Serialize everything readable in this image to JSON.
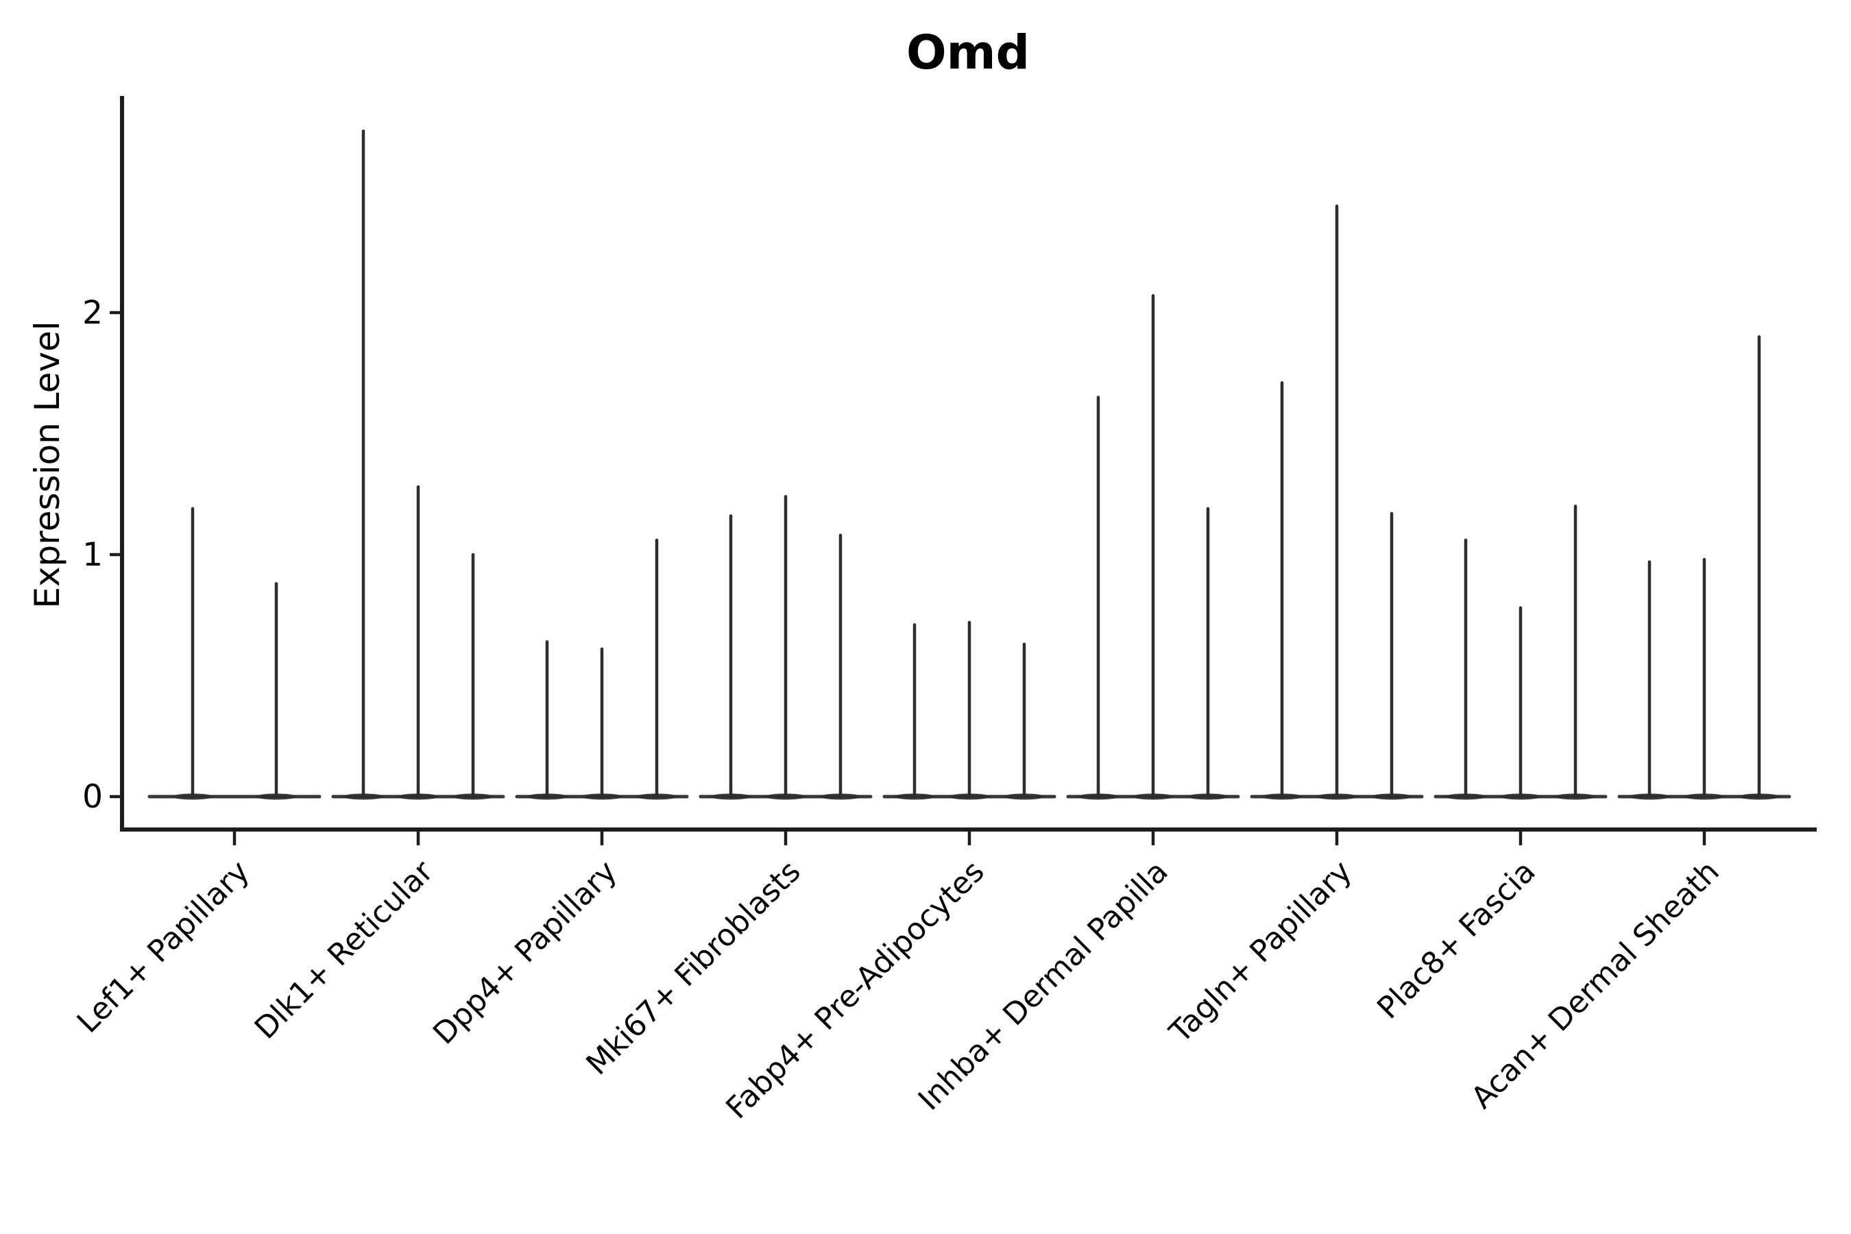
{
  "chart_data": {
    "type": "violin",
    "render_hint": "thin-stick-violins, black on white, matplotlib-style",
    "title": "Omd",
    "ylabel": "Expression Level",
    "xlabel": "",
    "yticks": [
      0,
      1,
      2
    ],
    "ylim": [
      -0.14,
      2.9
    ],
    "grid": false,
    "legend": null,
    "xticklabel_rotation": 45,
    "categories": [
      "Lef1+ Papillary",
      "Dlk1+ Reticular",
      "Dpp4+ Papillary",
      "Mki67+ Fibroblasts",
      "Fabp4+ Pre-Adipocytes",
      "Inhba+ Dermal Papilla",
      "Tagln+ Papillary",
      "Plac8+ Fascia",
      "Acan+ Dermal Sheath"
    ],
    "series": [
      {
        "category": "Lef1+ Papillary",
        "violin_maxima": [
          1.19,
          0.88
        ]
      },
      {
        "category": "Dlk1+ Reticular",
        "violin_maxima": [
          2.75,
          1.28,
          1.0
        ]
      },
      {
        "category": "Dpp4+ Papillary",
        "violin_maxima": [
          0.64,
          0.61,
          1.06
        ]
      },
      {
        "category": "Mki67+ Fibroblasts",
        "violin_maxima": [
          1.16,
          1.24,
          1.08
        ]
      },
      {
        "category": "Fabp4+ Pre-Adipocytes",
        "violin_maxima": [
          0.71,
          0.72,
          0.63
        ]
      },
      {
        "category": "Inhba+ Dermal Papilla",
        "violin_maxima": [
          1.65,
          2.07,
          1.19
        ]
      },
      {
        "category": "Tagln+ Papillary",
        "violin_maxima": [
          1.71,
          2.44,
          1.17
        ]
      },
      {
        "category": "Plac8+ Fascia",
        "violin_maxima": [
          1.06,
          0.78,
          1.2
        ]
      },
      {
        "category": "Acan+ Dermal Sheath",
        "violin_maxima": [
          0.97,
          0.98,
          1.9
        ]
      }
    ],
    "violin_min": 0,
    "colors": {
      "ink": "#1c1c1c",
      "spike": "#2d2d2d",
      "text": "#000000",
      "background": "#ffffff"
    }
  }
}
